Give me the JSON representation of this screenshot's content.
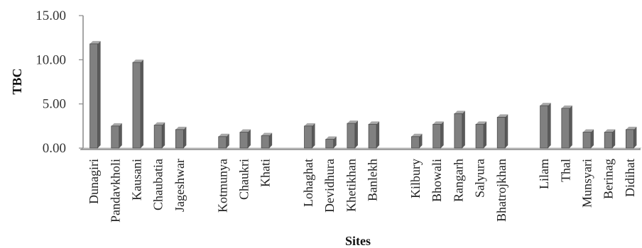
{
  "chart_data": {
    "type": "bar",
    "title": "",
    "xlabel": "Sites",
    "ylabel": "TBC",
    "ylim": [
      0,
      15
    ],
    "yticks": [
      "0.00",
      "5.00",
      "10.00",
      "15.00"
    ],
    "grid": false,
    "legend": "none",
    "bar_color": "#808080",
    "groups": [
      {
        "categories": [
          "Dunagiri",
          "Pandavkholi",
          "Kausani",
          "Chaubatia",
          "Jageshwar"
        ],
        "values": [
          11.8,
          2.5,
          9.7,
          2.6,
          2.1
        ]
      },
      {
        "categories": [
          "Kotmunya",
          "Chaukri",
          "Khati"
        ],
        "values": [
          1.3,
          1.8,
          1.4
        ]
      },
      {
        "categories": [
          "Lohaghat",
          "Devidhura",
          "Khetikhan",
          "Banlekh"
        ],
        "values": [
          2.5,
          1.0,
          2.8,
          2.7
        ]
      },
      {
        "categories": [
          "Kilbury",
          "Bhowali",
          "Rangarh",
          "Salyura",
          "Bhatrojkhan"
        ],
        "values": [
          1.3,
          2.7,
          3.9,
          2.7,
          3.5
        ]
      },
      {
        "categories": [
          "Lilam",
          "Thal",
          "Munsyari",
          "Berinag",
          "Didihat"
        ],
        "values": [
          4.8,
          4.5,
          1.8,
          1.8,
          2.1
        ]
      }
    ]
  }
}
